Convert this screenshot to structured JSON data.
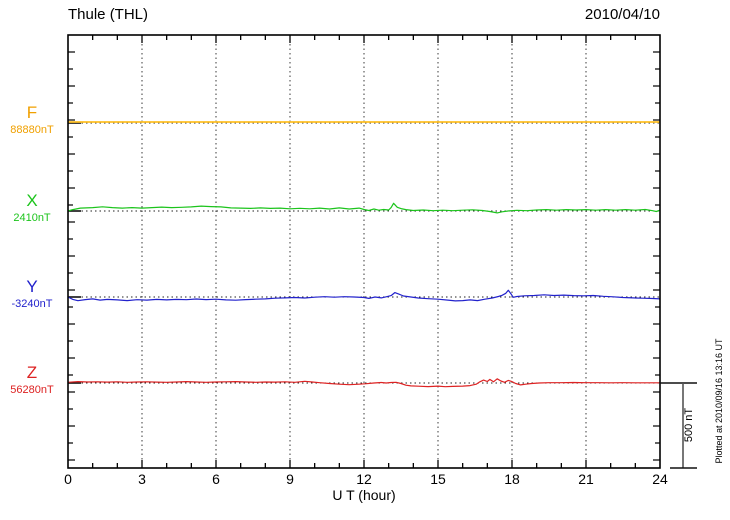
{
  "header": {
    "title": "Thule (THL)",
    "date": "2010/04/10"
  },
  "x_axis": {
    "label": "U T (hour)"
  },
  "scale_bar": {
    "label": "500 nT"
  },
  "footer_note": "Plotted at 2010/09/16 13:16 UT",
  "chart_data": {
    "type": "line",
    "title": "Thule (THL)",
    "date_utc": "2010/04/10",
    "xlabel": "U T (hour)",
    "x_range": [
      0,
      24
    ],
    "x_major_ticks": [
      0,
      3,
      6,
      9,
      12,
      15,
      18,
      21,
      24
    ],
    "x_minor_step_hours": 1,
    "y_tick_interval_nT": 100,
    "grid": "dotted vertical lines every 3 h; dotted horizontal baseline for each trace",
    "legend_position": "left margin (trace name above baseline value)",
    "scale_bar_nT": 500,
    "series": [
      {
        "name": "F",
        "baseline_nT": 88880,
        "baseline_label": "88880nT",
        "label_color": "#F0A000",
        "line_color": "#FFC125",
        "points": [
          [
            0,
            6
          ],
          [
            24,
            6
          ]
        ]
      },
      {
        "name": "X",
        "baseline_nT": 2410,
        "baseline_label": "2410nT",
        "label_color": "#1CC41C",
        "line_color": "#1CC41C",
        "points": [
          [
            0,
            0
          ],
          [
            0.2,
            8
          ],
          [
            0.5,
            17
          ],
          [
            1,
            20
          ],
          [
            1.4,
            25
          ],
          [
            1.8,
            20
          ],
          [
            2.2,
            17
          ],
          [
            2.6,
            20
          ],
          [
            3,
            17
          ],
          [
            3.4,
            20
          ],
          [
            3.8,
            23
          ],
          [
            4.2,
            20
          ],
          [
            4.6,
            22
          ],
          [
            5,
            24
          ],
          [
            5.4,
            29
          ],
          [
            5.8,
            26
          ],
          [
            6.2,
            24
          ],
          [
            6.6,
            18
          ],
          [
            7,
            17
          ],
          [
            7.4,
            15
          ],
          [
            7.8,
            18
          ],
          [
            8.2,
            15
          ],
          [
            8.6,
            17
          ],
          [
            9,
            13
          ],
          [
            9.4,
            16
          ],
          [
            9.8,
            13
          ],
          [
            10.2,
            17
          ],
          [
            10.6,
            12
          ],
          [
            11,
            18
          ],
          [
            11.4,
            12
          ],
          [
            11.8,
            17
          ],
          [
            12,
            9
          ],
          [
            12.2,
            3
          ],
          [
            12.4,
            12
          ],
          [
            12.6,
            5
          ],
          [
            12.8,
            9
          ],
          [
            13,
            6
          ],
          [
            13.1,
            20
          ],
          [
            13.2,
            45
          ],
          [
            13.35,
            22
          ],
          [
            13.5,
            14
          ],
          [
            13.7,
            8
          ],
          [
            14,
            3
          ],
          [
            14.4,
            6
          ],
          [
            14.8,
            2
          ],
          [
            15.2,
            5
          ],
          [
            15.6,
            2
          ],
          [
            16,
            5
          ],
          [
            16.4,
            7
          ],
          [
            16.8,
            3
          ],
          [
            17.1,
            -3
          ],
          [
            17.4,
            -11
          ],
          [
            17.6,
            -5
          ],
          [
            17.9,
            1
          ],
          [
            18.2,
            4
          ],
          [
            18.6,
            2
          ],
          [
            19,
            6
          ],
          [
            19.4,
            8
          ],
          [
            19.8,
            5
          ],
          [
            20.2,
            8
          ],
          [
            20.6,
            6
          ],
          [
            21,
            8
          ],
          [
            21.4,
            5
          ],
          [
            21.8,
            8
          ],
          [
            22.2,
            5
          ],
          [
            22.6,
            8
          ],
          [
            23,
            5
          ],
          [
            23.4,
            9
          ],
          [
            23.7,
            2
          ],
          [
            23.85,
            -3
          ],
          [
            24,
            5
          ]
        ]
      },
      {
        "name": "Y",
        "baseline_nT": -3240,
        "baseline_label": "-3240nT",
        "label_color": "#2222CC",
        "line_color": "#2222CC",
        "points": [
          [
            0,
            0
          ],
          [
            0.2,
            -14
          ],
          [
            0.4,
            -22
          ],
          [
            0.7,
            -15
          ],
          [
            1,
            -11
          ],
          [
            1.3,
            -18
          ],
          [
            1.6,
            -14
          ],
          [
            2,
            -17
          ],
          [
            2.4,
            -21
          ],
          [
            2.8,
            -16
          ],
          [
            3.2,
            -18
          ],
          [
            3.6,
            -14
          ],
          [
            4,
            -17
          ],
          [
            4.4,
            -14
          ],
          [
            4.8,
            -16
          ],
          [
            5.2,
            -12
          ],
          [
            5.6,
            -15
          ],
          [
            6,
            -13
          ],
          [
            6.4,
            -17
          ],
          [
            6.8,
            -19
          ],
          [
            7.2,
            -15
          ],
          [
            7.6,
            -13
          ],
          [
            8,
            -11
          ],
          [
            8.4,
            -7
          ],
          [
            8.8,
            -5
          ],
          [
            9.2,
            -3
          ],
          [
            9.6,
            -6
          ],
          [
            10,
            -1
          ],
          [
            10.4,
            2
          ],
          [
            10.8,
            -1
          ],
          [
            11.2,
            2
          ],
          [
            11.6,
            0
          ],
          [
            12,
            -3
          ],
          [
            12.2,
            -8
          ],
          [
            12.45,
            0
          ],
          [
            12.7,
            -5
          ],
          [
            12.9,
            1
          ],
          [
            13.1,
            8
          ],
          [
            13.25,
            26
          ],
          [
            13.4,
            18
          ],
          [
            13.6,
            6
          ],
          [
            13.9,
            0
          ],
          [
            14.2,
            -6
          ],
          [
            14.6,
            -10
          ],
          [
            15,
            -13
          ],
          [
            15.4,
            -18
          ],
          [
            15.7,
            -23
          ],
          [
            16,
            -21
          ],
          [
            16.3,
            -17
          ],
          [
            16.6,
            -21
          ],
          [
            16.9,
            -13
          ],
          [
            17.2,
            -6
          ],
          [
            17.45,
            3
          ],
          [
            17.6,
            10
          ],
          [
            17.75,
            22
          ],
          [
            17.85,
            40
          ],
          [
            17.95,
            20
          ],
          [
            18.05,
            -2
          ],
          [
            18.2,
            3
          ],
          [
            18.5,
            7
          ],
          [
            18.9,
            9
          ],
          [
            19.3,
            13
          ],
          [
            19.7,
            9
          ],
          [
            20.1,
            11
          ],
          [
            20.5,
            8
          ],
          [
            20.9,
            7
          ],
          [
            21.3,
            9
          ],
          [
            21.7,
            4
          ],
          [
            22.1,
            1
          ],
          [
            22.5,
            -3
          ],
          [
            22.9,
            -5
          ],
          [
            23.3,
            -7
          ],
          [
            23.7,
            -9
          ],
          [
            24,
            -11
          ]
        ]
      },
      {
        "name": "Z",
        "baseline_nT": 56280,
        "baseline_label": "56280nT",
        "label_color": "#DD2222",
        "line_color": "#DD2222",
        "points": [
          [
            0,
            4
          ],
          [
            0.4,
            8
          ],
          [
            0.8,
            6
          ],
          [
            1.2,
            7
          ],
          [
            1.6,
            5
          ],
          [
            2,
            7
          ],
          [
            2.4,
            4
          ],
          [
            2.8,
            6
          ],
          [
            3.2,
            7
          ],
          [
            3.6,
            5
          ],
          [
            4,
            4
          ],
          [
            4.4,
            6
          ],
          [
            4.8,
            8
          ],
          [
            5.2,
            6
          ],
          [
            5.6,
            4
          ],
          [
            6,
            6
          ],
          [
            6.4,
            7
          ],
          [
            6.8,
            8
          ],
          [
            7.2,
            6
          ],
          [
            7.6,
            4
          ],
          [
            8,
            6
          ],
          [
            8.4,
            5
          ],
          [
            8.8,
            7
          ],
          [
            9.2,
            4
          ],
          [
            9.6,
            10
          ],
          [
            9.9,
            6
          ],
          [
            10.2,
            2
          ],
          [
            10.6,
            -3
          ],
          [
            11,
            -7
          ],
          [
            11.4,
            -10
          ],
          [
            11.8,
            -7
          ],
          [
            12.1,
            -4
          ],
          [
            12.4,
            0
          ],
          [
            12.7,
            3
          ],
          [
            12.9,
            0
          ],
          [
            13.1,
            3
          ],
          [
            13.3,
            4
          ],
          [
            13.5,
            -3
          ],
          [
            13.7,
            -13
          ],
          [
            13.9,
            -17
          ],
          [
            14.2,
            -19
          ],
          [
            14.6,
            -21
          ],
          [
            15,
            -18
          ],
          [
            15.3,
            -22
          ],
          [
            15.6,
            -20
          ],
          [
            16,
            -18
          ],
          [
            16.3,
            -15
          ],
          [
            16.55,
            -7
          ],
          [
            16.7,
            7
          ],
          [
            16.85,
            17
          ],
          [
            17,
            9
          ],
          [
            17.1,
            21
          ],
          [
            17.25,
            7
          ],
          [
            17.4,
            25
          ],
          [
            17.55,
            12
          ],
          [
            17.7,
            4
          ],
          [
            17.85,
            15
          ],
          [
            18,
            8
          ],
          [
            18.15,
            -3
          ],
          [
            18.35,
            -11
          ],
          [
            18.55,
            -7
          ],
          [
            18.8,
            -3
          ],
          [
            19.1,
            0
          ],
          [
            19.5,
            2
          ],
          [
            20,
            2
          ],
          [
            20.5,
            3
          ],
          [
            21,
            2
          ],
          [
            21.5,
            2
          ],
          [
            22,
            1
          ],
          [
            22.5,
            2
          ],
          [
            23,
            1
          ],
          [
            23.5,
            1
          ],
          [
            24,
            1
          ]
        ]
      }
    ]
  }
}
